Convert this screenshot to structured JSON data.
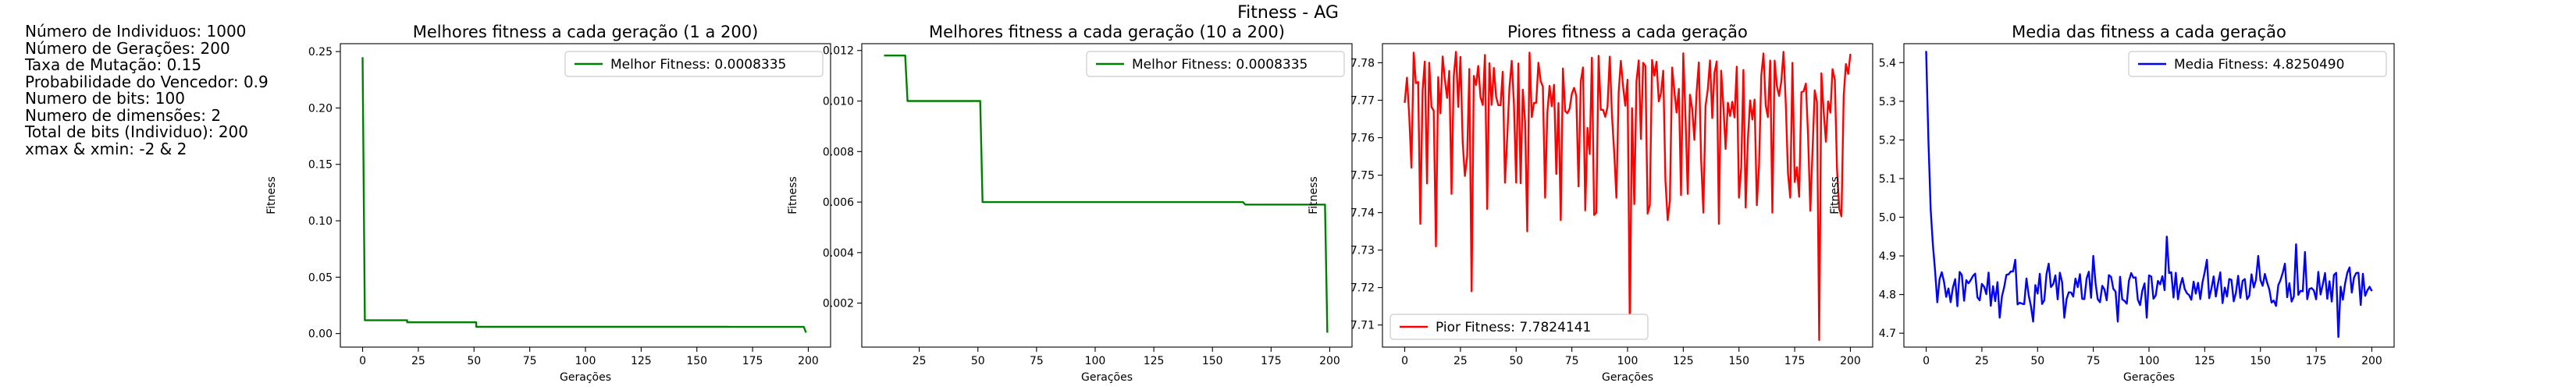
{
  "figure_title": "Fitness - AG",
  "params": [
    "Número de Individuos: 1000",
    "Número de Gerações: 200",
    "Taxa de Mutação: 0.15",
    "Probabilidade do Vencedor: 0.9",
    "Numero de bits: 100",
    "Numero de dimensões: 2",
    "Total de bits (Individuo): 200",
    "xmax & xmin: -2 & 2"
  ],
  "colors": {
    "green": "#008000",
    "red": "#ff0000",
    "blue": "#0000ff"
  },
  "chart_data": [
    {
      "type": "line",
      "title": "Melhores fitness a cada geração (1 a 200)",
      "xlabel": "Gerações",
      "ylabel": "Fitness",
      "xlim": [
        -10,
        210
      ],
      "ylim": [
        -0.012,
        0.257
      ],
      "xticks": [
        0,
        25,
        50,
        75,
        100,
        125,
        150,
        175,
        200
      ],
      "yticks": [
        0.0,
        0.05,
        0.1,
        0.15,
        0.2,
        0.25
      ],
      "ytick_labels": [
        "0.00",
        "0.05",
        "0.10",
        "0.15",
        "0.20",
        "0.25"
      ],
      "grid": false,
      "legend": "top-right",
      "legend_label": "Melhor Fitness: 0.0008335",
      "color": "#008000",
      "step": true,
      "points": [
        [
          0,
          0.245
        ],
        [
          1,
          0.0118
        ],
        [
          20,
          0.0118
        ],
        [
          20,
          0.01
        ],
        [
          51,
          0.01
        ],
        [
          51,
          0.006
        ],
        [
          164,
          0.006
        ],
        [
          164,
          0.0059
        ],
        [
          198,
          0.0059
        ],
        [
          199,
          0.00083
        ]
      ]
    },
    {
      "type": "line",
      "title": "Melhores fitness a cada geração (10 a 200)",
      "xlabel": "Gerações",
      "ylabel": "Fitness",
      "xlim": [
        0.5,
        209.5
      ],
      "ylim": [
        0.00026,
        0.01227
      ],
      "xticks": [
        25,
        50,
        75,
        100,
        125,
        150,
        175,
        200
      ],
      "yticks": [
        0.002,
        0.004,
        0.006,
        0.008,
        0.01,
        0.012
      ],
      "ytick_labels": [
        "0.002",
        "0.004",
        "0.006",
        "0.008",
        "0.010",
        "0.012"
      ],
      "grid": false,
      "legend": "top-right",
      "legend_label": "Melhor Fitness: 0.0008335",
      "color": "#008000",
      "step": true,
      "points": [
        [
          10,
          0.0118
        ],
        [
          19,
          0.0118
        ],
        [
          20,
          0.01
        ],
        [
          51,
          0.01
        ],
        [
          52,
          0.006
        ],
        [
          163,
          0.006
        ],
        [
          164,
          0.0059
        ],
        [
          198,
          0.0059
        ],
        [
          199,
          0.00083
        ]
      ]
    },
    {
      "type": "line",
      "title": "Piores fitness a cada geração",
      "xlabel": "Gerações",
      "ylabel": "Fitness",
      "xlim": [
        -10,
        210
      ],
      "ylim": [
        7.7041,
        7.7851
      ],
      "xticks": [
        0,
        25,
        50,
        75,
        100,
        125,
        150,
        175,
        200
      ],
      "yticks": [
        7.71,
        7.72,
        7.73,
        7.74,
        7.75,
        7.76,
        7.77,
        7.78
      ],
      "ytick_labels": [
        "7.71",
        "7.72",
        "7.73",
        "7.74",
        "7.75",
        "7.76",
        "7.77",
        "7.78"
      ],
      "grid": false,
      "legend": "bottom-left",
      "legend_label": "Pior Fitness: 7.7824141",
      "color": "#ff0000",
      "seed": 7,
      "base": 7.774,
      "noise": 0.009,
      "spikes": [
        [
          3,
          7.752
        ],
        [
          7,
          7.737
        ],
        [
          14,
          7.731
        ],
        [
          21,
          7.745
        ],
        [
          30,
          7.719
        ],
        [
          37,
          7.741
        ],
        [
          45,
          7.748
        ],
        [
          55,
          7.735
        ],
        [
          63,
          7.744
        ],
        [
          70,
          7.738
        ],
        [
          78,
          7.747
        ],
        [
          86,
          7.74
        ],
        [
          95,
          7.744
        ],
        [
          101,
          7.709
        ],
        [
          110,
          7.742
        ],
        [
          118,
          7.738
        ],
        [
          127,
          7.745
        ],
        [
          134,
          7.74
        ],
        [
          141,
          7.737
        ],
        [
          150,
          7.744
        ],
        [
          158,
          7.742
        ],
        [
          165,
          7.74
        ],
        [
          173,
          7.744
        ],
        [
          186,
          7.706
        ],
        [
          196,
          7.739
        ]
      ],
      "last": 7.7824
    },
    {
      "type": "line",
      "title": "Media das fitness a cada geração",
      "xlabel": "Gerações",
      "ylabel": "Fitness",
      "xlim": [
        -10,
        210
      ],
      "ylim": [
        4.664,
        5.449
      ],
      "xticks": [
        0,
        25,
        50,
        75,
        100,
        125,
        150,
        175,
        200
      ],
      "yticks": [
        4.7,
        4.8,
        4.9,
        5.0,
        5.1,
        5.2,
        5.3,
        5.4
      ],
      "ytick_labels": [
        "4.7",
        "4.8",
        "4.9",
        "5.0",
        "5.1",
        "5.2",
        "5.3",
        "5.4"
      ],
      "grid": false,
      "legend": "top-right",
      "legend_label": "Media Fitness: 4.8250490",
      "color": "#0000ff",
      "seed": 13,
      "base": 4.815,
      "noise": 0.045,
      "head": [
        [
          0,
          5.43
        ],
        [
          1,
          5.2
        ],
        [
          2,
          5.02
        ],
        [
          3,
          4.93
        ],
        [
          4,
          4.86
        ],
        [
          5,
          4.78
        ],
        [
          6,
          4.84
        ]
      ],
      "extremes": [
        [
          14,
          4.77
        ],
        [
          33,
          4.74
        ],
        [
          40,
          4.89
        ],
        [
          48,
          4.73
        ],
        [
          55,
          4.88
        ],
        [
          62,
          4.74
        ],
        [
          75,
          4.9
        ],
        [
          86,
          4.73
        ],
        [
          99,
          4.74
        ],
        [
          108,
          4.95
        ],
        [
          126,
          4.89
        ],
        [
          149,
          4.9
        ],
        [
          161,
          4.88
        ],
        [
          166,
          4.93
        ],
        [
          170,
          4.91
        ],
        [
          185,
          4.69
        ],
        [
          190,
          4.87
        ],
        [
          199,
          4.82
        ]
      ]
    }
  ]
}
